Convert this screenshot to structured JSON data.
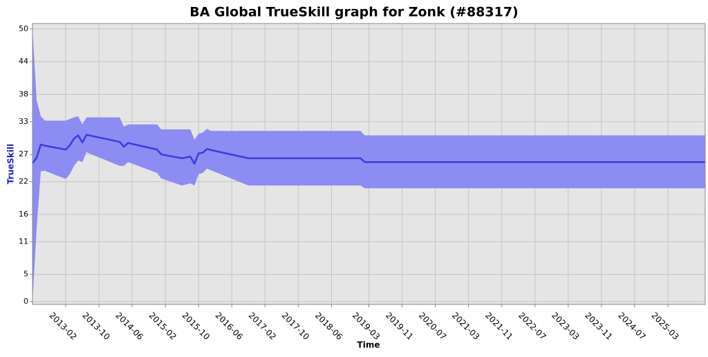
{
  "chart_data": {
    "type": "line",
    "title": "BA Global TrueSkill graph for Zonk (#88317)",
    "x_label": "Time",
    "y_label": "TrueSkill",
    "x": [
      "2012-06",
      "2012-07",
      "2012-08",
      "2012-09",
      "2013-02",
      "2013-03",
      "2013-04",
      "2013-05",
      "2013-06",
      "2013-07",
      "2014-03",
      "2014-04",
      "2014-05",
      "2014-12",
      "2015-01",
      "2015-06",
      "2015-08",
      "2015-09",
      "2015-10",
      "2015-11",
      "2015-12",
      "2016-01",
      "2016-10",
      "2019-01",
      "2019-02",
      "2025-12"
    ],
    "series": [
      {
        "color": "#3c3cdc",
        "values": [
          25.4,
          26.4,
          28.8,
          28.6,
          27.9,
          28.7,
          29.9,
          30.5,
          29.2,
          30.6,
          29.3,
          28.4,
          29.1,
          27.9,
          27.0,
          26.3,
          26.6,
          25.3,
          27.2,
          27.3,
          28.0,
          27.8,
          26.3,
          26.3,
          25.6,
          25.6
        ]
      }
    ],
    "band": {
      "color": "#8c8cf2",
      "upper": [
        50.0,
        36.9,
        34.0,
        33.2,
        33.2,
        33.5,
        33.8,
        34.0,
        32.5,
        33.8,
        33.8,
        32.1,
        32.5,
        32.5,
        31.6,
        31.6,
        31.6,
        29.7,
        30.8,
        31.0,
        31.7,
        31.3,
        31.3,
        31.3,
        30.5,
        30.5
      ],
      "lower": [
        0,
        13.5,
        23.9,
        24.0,
        22.5,
        23.4,
        24.9,
        25.9,
        25.6,
        27.4,
        24.9,
        24.9,
        25.6,
        23.6,
        22.6,
        21.3,
        21.7,
        21.3,
        23.4,
        23.6,
        24.4,
        24.1,
        21.3,
        21.3,
        20.8,
        20.8
      ]
    },
    "xlim": [
      "2012-06",
      "2025-12"
    ],
    "xticks": [
      "2013-02",
      "2013-10",
      "2014-06",
      "2015-02",
      "2015-10",
      "2016-06",
      "2017-02",
      "2017-10",
      "2018-06",
      "2019-03",
      "2019-11",
      "2020-07",
      "2021-03",
      "2021-11",
      "2022-07",
      "2023-03",
      "2023-11",
      "2024-07",
      "2025-03"
    ],
    "ylim": [
      -0.5,
      51
    ],
    "yticks": [
      0,
      5,
      11,
      16,
      22,
      27,
      33,
      38,
      44,
      50
    ],
    "grid": true
  }
}
